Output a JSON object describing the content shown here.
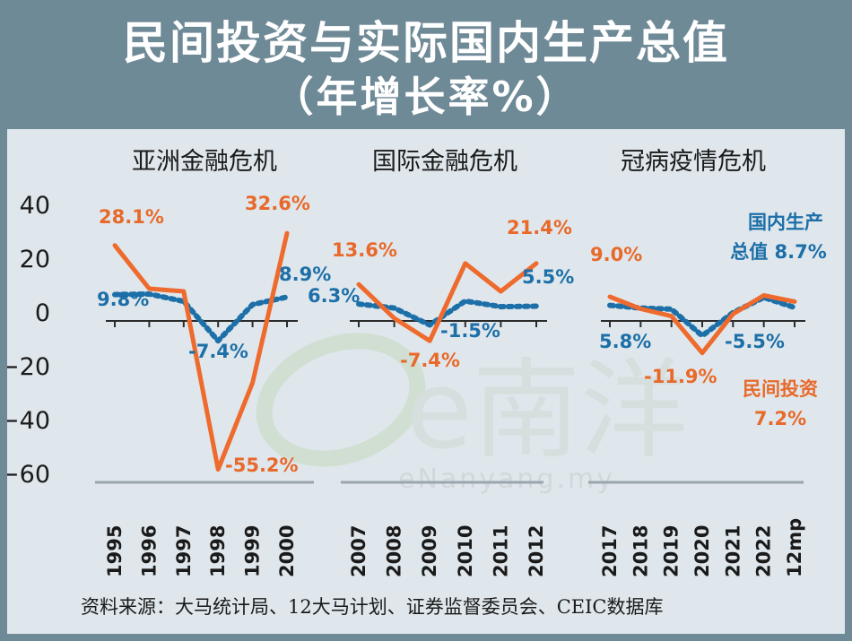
{
  "title": "民间投资与实际国内生产总值",
  "subtitle": "（年增长率%）",
  "source": "资料来源：大马统计局、12大马计划、证券监督委员会、CEIC数据库",
  "watermark": {
    "logo_text": "e南洋",
    "url_text": "eNanyang.my"
  },
  "colors": {
    "private_investment": "#ee6a2d",
    "real_gdp": "#1d6fa8",
    "frame": "#6f8a97",
    "panel": "#dfe7ec"
  },
  "chart_data": [
    {
      "type": "line",
      "title": "亚洲金融危机",
      "categories": [
        "1995",
        "1996",
        "1997",
        "1998",
        "1999",
        "2000"
      ],
      "ylim": [
        -60,
        40
      ],
      "yticks": [
        "40",
        "20",
        "0",
        "−20",
        "−40",
        "−60"
      ],
      "series": [
        {
          "name": "民间投资",
          "values": [
            28.1,
            12.0,
            11.0,
            -55.2,
            -23.0,
            32.6
          ]
        },
        {
          "name": "国内生产总值",
          "values": [
            9.8,
            10.0,
            7.3,
            -7.4,
            6.1,
            8.9
          ]
        }
      ],
      "labels": [
        "28.1%",
        "32.6%",
        "9.8%",
        "-7.4%",
        "-55.2%",
        "8.9%"
      ]
    },
    {
      "type": "line",
      "title": "国际金融危机",
      "categories": [
        "2007",
        "2008",
        "2009",
        "2010",
        "2011",
        "2012"
      ],
      "ylim": [
        -60,
        40
      ],
      "series": [
        {
          "name": "民间投资",
          "values": [
            13.6,
            1.0,
            -7.4,
            21.4,
            11.0,
            21.4
          ]
        },
        {
          "name": "国内生产总值",
          "values": [
            6.3,
            4.8,
            -1.5,
            7.4,
            5.3,
            5.5
          ]
        }
      ],
      "labels": [
        "13.6%",
        "6.3%",
        "21.4%",
        "5.5%",
        "-1.5%",
        "-7.4%"
      ]
    },
    {
      "type": "line",
      "title": "冠病疫情危机",
      "categories": [
        "2017",
        "2018",
        "2019",
        "2020",
        "2021",
        "2022",
        "12mp"
      ],
      "ylim": [
        -60,
        40
      ],
      "series": [
        {
          "name": "民间投资",
          "values": [
            9.0,
            4.5,
            1.8,
            -11.9,
            2.6,
            9.5,
            7.2
          ]
        },
        {
          "name": "国内生产总值",
          "values": [
            5.8,
            4.8,
            4.4,
            -5.5,
            3.1,
            8.7,
            5.0
          ]
        }
      ],
      "labels": [
        "9.0%",
        "5.8%",
        "-5.5%",
        "-11.9%"
      ],
      "legend_labels": {
        "gdp_line1": "国内生产",
        "gdp_line2": "总值 8.7%",
        "inv_line1": "民间投资",
        "inv_line2": "7.2%"
      }
    }
  ]
}
